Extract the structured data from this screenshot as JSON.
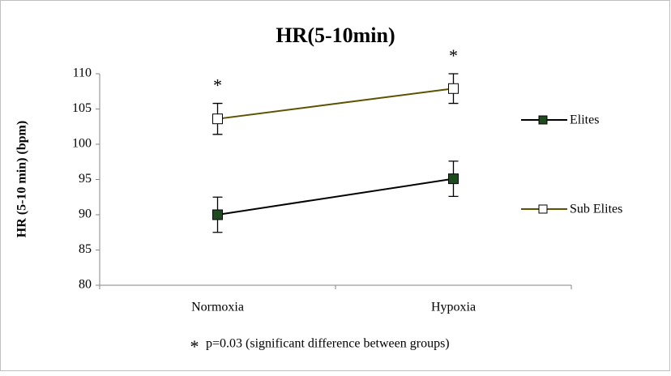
{
  "chart_data": {
    "type": "line",
    "title": "HR(5-10min)",
    "y_label": "HR (5-10 min) (bpm)",
    "categories": [
      "Normoxia",
      "Hypoxia"
    ],
    "series": [
      {
        "name": "Elites",
        "color": "#000000",
        "marker_fill": "#1f4a1f",
        "values": [
          90.0,
          95.1
        ],
        "errors": [
          2.5,
          2.5
        ]
      },
      {
        "name": "Sub Elites",
        "color": "#5c5200",
        "marker_fill": "#ffffff",
        "values": [
          103.6,
          107.9
        ],
        "errors": [
          2.2,
          2.1
        ]
      }
    ],
    "significance_markers": [
      "*",
      "*"
    ],
    "footnote_marker": "*",
    "footnote": "p=0.03 (significant difference between groups)",
    "ylim": [
      80,
      110
    ],
    "yticks": [
      80,
      85,
      90,
      95,
      100,
      105,
      110
    ],
    "grid": false,
    "legend": "right"
  }
}
